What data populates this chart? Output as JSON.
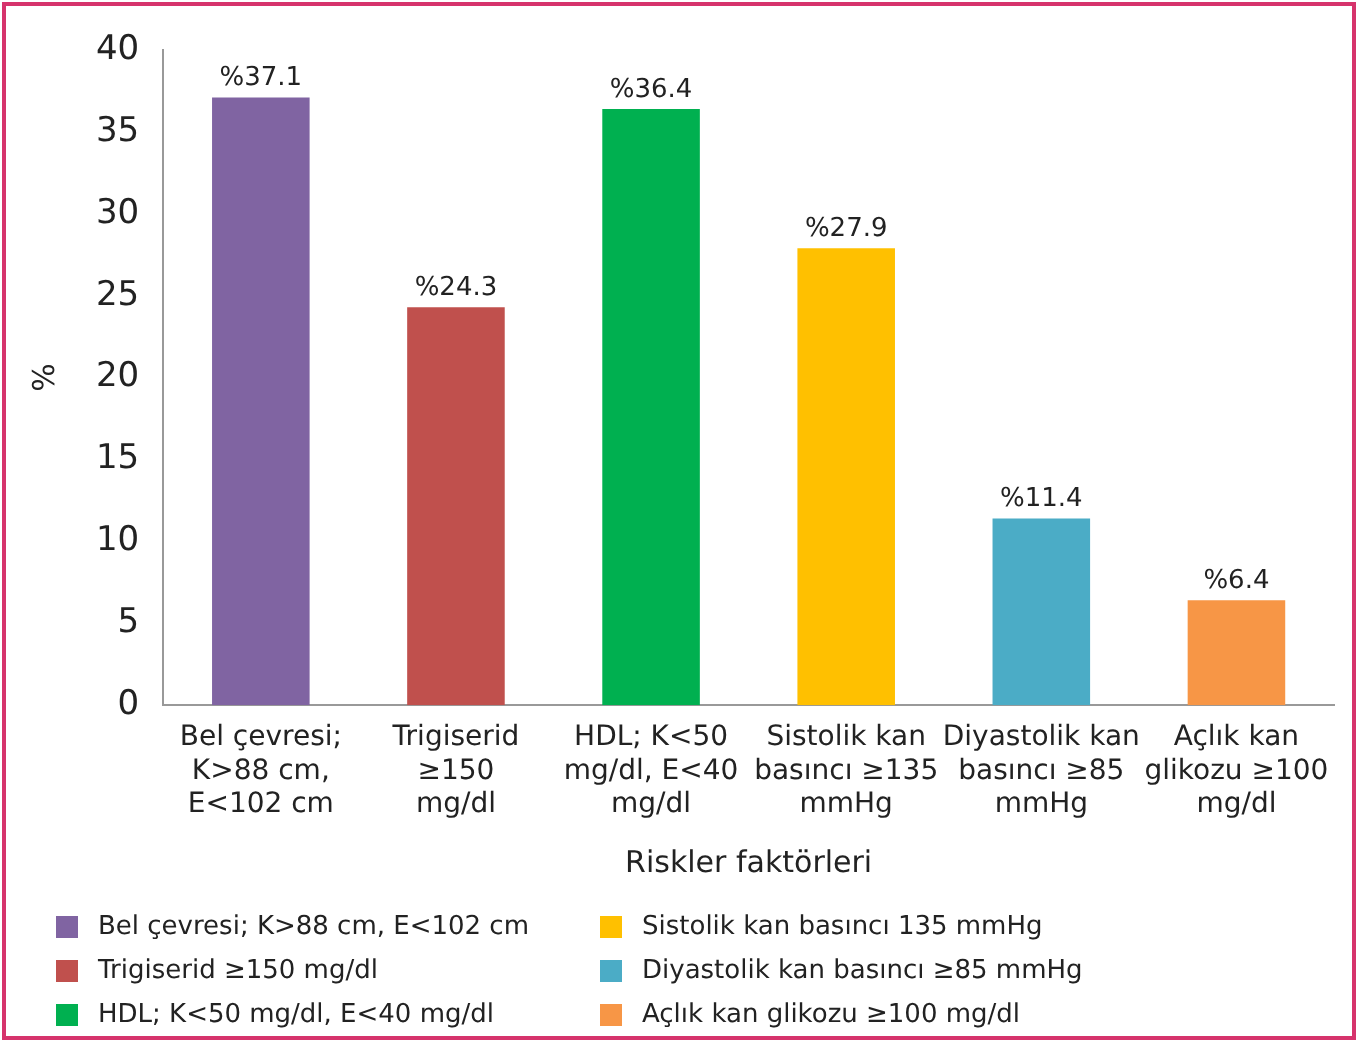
{
  "chart_data": {
    "type": "bar",
    "xlabel": "Riskler faktörleri",
    "ylabel": "%",
    "categories": [
      "Bel çevresi;\nK>88 cm,\nE<102 cm",
      "Trigiserid\n≥150\nmg/dl",
      "HDL; K<50\nmg/dl, E<40\nmg/dl",
      "Sistolik kan\nbasıncı ≥135\nmmHg",
      "Diyastolik kan\nbasıncı ≥85\nmmHg",
      "Açlık kan\nglikozu ≥100\nmg/dl"
    ],
    "stacked": true,
    "series": [
      {
        "name": "Bel çevresi; K>88 cm, E<102 cm",
        "color": "#8064a2",
        "values": [
          37.1,
          null,
          null,
          null,
          null,
          null
        ],
        "value_labels": [
          "%37.1",
          null,
          null,
          null,
          null,
          null
        ]
      },
      {
        "name": "Trigiserid ≥150 mg/dl",
        "color": "#c0504d",
        "values": [
          null,
          24.3,
          null,
          null,
          null,
          null
        ],
        "value_labels": [
          null,
          "%24.3",
          null,
          null,
          null,
          null
        ]
      },
      {
        "name": "HDL; K<50 mg/dl, E<40 mg/dl",
        "color": "#00b050",
        "values": [
          null,
          null,
          36.4,
          null,
          null,
          null
        ],
        "value_labels": [
          null,
          null,
          "%36.4",
          null,
          null,
          null
        ]
      },
      {
        "name": "Sistolik kan basıncı 135 mmHg",
        "color": "#ffc000",
        "values": [
          null,
          null,
          null,
          27.9,
          null,
          null
        ],
        "value_labels": [
          null,
          null,
          null,
          "%27.9",
          null,
          null
        ]
      },
      {
        "name": "Diyastolik kan basıncı ≥85 mmHg",
        "color": "#4bacc6",
        "values": [
          null,
          null,
          null,
          null,
          11.4,
          null
        ],
        "value_labels": [
          null,
          null,
          null,
          null,
          "%11.4",
          null
        ]
      },
      {
        "name": "Açlık kan glikozu ≥100 mg/dl",
        "color": "#f79646",
        "values": [
          null,
          null,
          null,
          null,
          null,
          6.4
        ],
        "value_labels": [
          null,
          null,
          null,
          null,
          null,
          "%6.4"
        ]
      }
    ],
    "ylim": [
      0,
      40
    ],
    "yticks": [
      0,
      5,
      10,
      15,
      20,
      25,
      30,
      35,
      40
    ],
    "grid": false,
    "legend": "bottom"
  }
}
